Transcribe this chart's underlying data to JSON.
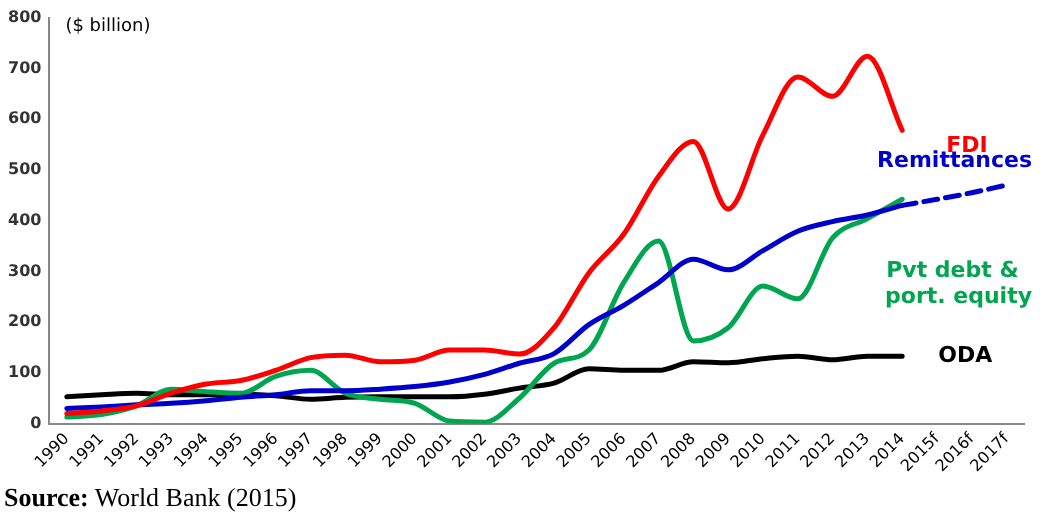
{
  "chart_data": {
    "type": "line",
    "ylabel": "($ billion)",
    "categories": [
      "1990",
      "1991",
      "1992",
      "1993",
      "1994",
      "1995",
      "1996",
      "1997",
      "1998",
      "1999",
      "2000",
      "2001",
      "2002",
      "2003",
      "2004",
      "2005",
      "2006",
      "2007",
      "2008",
      "2009",
      "2010",
      "2011",
      "2012",
      "2013",
      "2014",
      "2015f",
      "2016f",
      "2017f"
    ],
    "ylim": [
      0,
      800
    ],
    "yticks": [
      0,
      100,
      200,
      300,
      400,
      500,
      600,
      700,
      800
    ],
    "grid": false,
    "legend": false,
    "marker": "none",
    "series": [
      {
        "name": "FDI",
        "color": "#ff0000",
        "values": [
          20,
          25,
          35,
          60,
          78,
          85,
          105,
          130,
          135,
          122,
          125,
          145,
          145,
          137,
          189,
          297,
          373,
          487,
          556,
          423,
          569,
          683,
          645,
          724,
          578,
          null,
          null,
          null
        ]
      },
      {
        "name": "Remittances",
        "color": "#0000cc",
        "values": [
          30,
          33,
          37,
          40,
          45,
          52,
          57,
          65,
          65,
          68,
          73,
          82,
          97,
          119,
          138,
          195,
          233,
          278,
          324,
          303,
          341,
          379,
          398,
          411,
          430,
          null,
          null,
          null
        ]
      },
      {
        "color": "#0000cc",
        "line_style": "dashed",
        "values": [
          null,
          null,
          null,
          null,
          null,
          null,
          null,
          null,
          null,
          null,
          null,
          null,
          null,
          null,
          null,
          null,
          null,
          null,
          null,
          null,
          null,
          null,
          null,
          null,
          430,
          442,
          455,
          470
        ]
      },
      {
        "name": "Pvt debt & port. equity",
        "color": "#00a64f",
        "values": [
          13,
          18,
          35,
          68,
          63,
          60,
          93,
          105,
          60,
          48,
          40,
          5,
          3,
          50,
          119,
          145,
          278,
          360,
          163,
          189,
          271,
          246,
          366,
          404,
          442,
          null,
          null,
          null
        ]
      },
      {
        "name": "ODA",
        "color": "#000000",
        "values": [
          53,
          57,
          60,
          57,
          57,
          58,
          55,
          48,
          52,
          53,
          53,
          53,
          58,
          70,
          80,
          108,
          105,
          105,
          122,
          120,
          128,
          133,
          126,
          133,
          133,
          null,
          null,
          null
        ]
      }
    ],
    "annotations": [
      "Source: World Bank (2015)"
    ]
  }
}
